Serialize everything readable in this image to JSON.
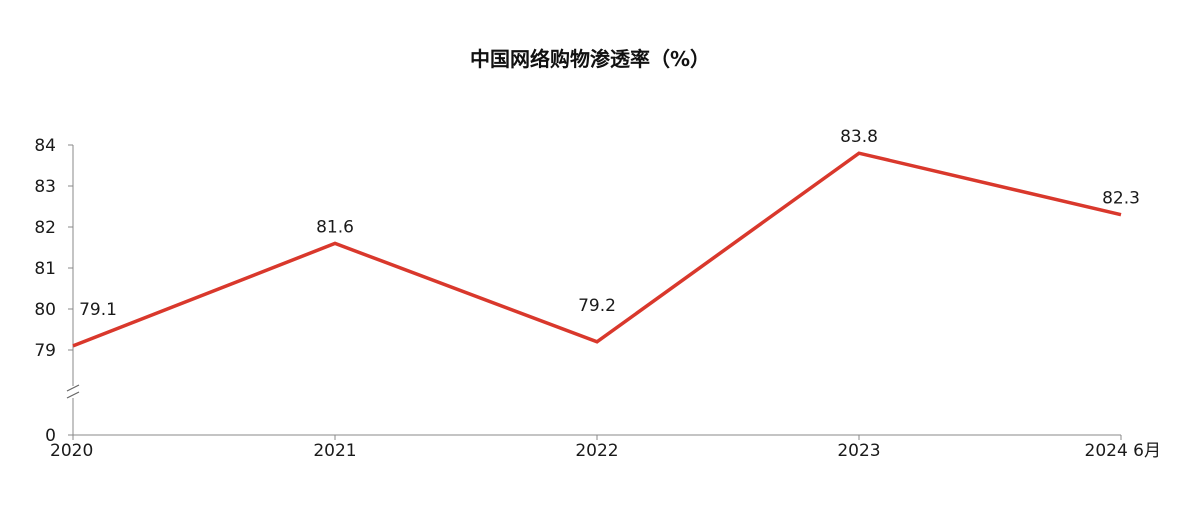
{
  "chart_data": {
    "type": "line",
    "title": "中国网络购物渗透率（%）",
    "xlabel": "",
    "ylabel": "",
    "categories": [
      "2020",
      "2021",
      "2022",
      "2023",
      "2024 6月"
    ],
    "series": [
      {
        "values": [
          79.1,
          81.6,
          79.2,
          83.8,
          82.3
        ],
        "labels": [
          "79.1",
          "81.6",
          "79.2",
          "83.8",
          "82.3"
        ],
        "color": "#d9382c"
      }
    ],
    "yticks": [
      "0",
      "79",
      "80",
      "81",
      "82",
      "83",
      "84"
    ],
    "ylim": [
      79,
      84
    ],
    "y_axis_break": true,
    "grid": false,
    "legend": "none"
  }
}
